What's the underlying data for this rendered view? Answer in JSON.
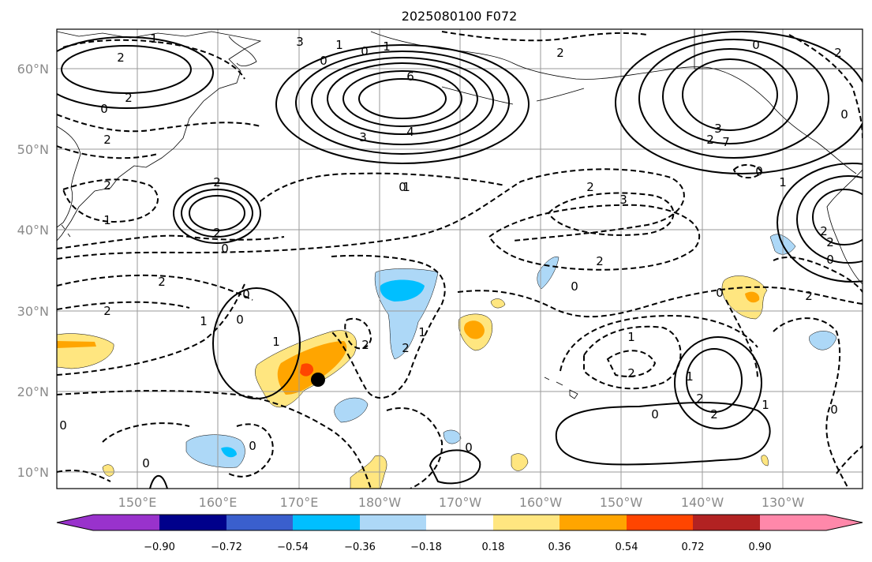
{
  "title": "2025080100 F072",
  "lat_labels": [
    "60°N",
    "50°N",
    "40°N",
    "30°N",
    "20°N",
    "10°N"
  ],
  "lon_labels": [
    "150°E",
    "160°E",
    "170°E",
    "180°W",
    "170°W",
    "160°W",
    "150°W",
    "140°W",
    "130°W"
  ],
  "colorbar": {
    "ticks": [
      "−0.90",
      "−0.72",
      "−0.54",
      "−0.36",
      "−0.18",
      "0.18",
      "0.36",
      "0.54",
      "0.72",
      "0.90"
    ],
    "colors": [
      "#9932cc",
      "#00008b",
      "#3a5fcd",
      "#00bfff",
      "#add8f7",
      "#ffffff",
      "#ffe680",
      "#ffa500",
      "#ff4500",
      "#b22222",
      "#ff88aa"
    ]
  },
  "contour_labels": [
    "1",
    "2",
    "2",
    "0",
    "2",
    "2",
    "1",
    "3",
    "0",
    "1",
    "0",
    "1",
    "6",
    "3",
    "4",
    "2",
    "0",
    "3",
    "2",
    "7",
    "0",
    "2",
    "0",
    "2",
    "2",
    "0",
    "0",
    "2",
    "1",
    "2",
    "1",
    "0",
    "0",
    "1",
    "2",
    "2",
    "1",
    "2",
    "3",
    "2",
    "0",
    "0",
    "2",
    "1",
    "0",
    "0",
    "0",
    "0",
    "2",
    "2",
    "1",
    "0",
    "2",
    "0",
    "0",
    "1",
    "2",
    "2",
    "1"
  ],
  "colors": {
    "storm_marker": "#000000",
    "grid": "#9a9a9a",
    "tick_label": "#8a8a8a"
  }
}
